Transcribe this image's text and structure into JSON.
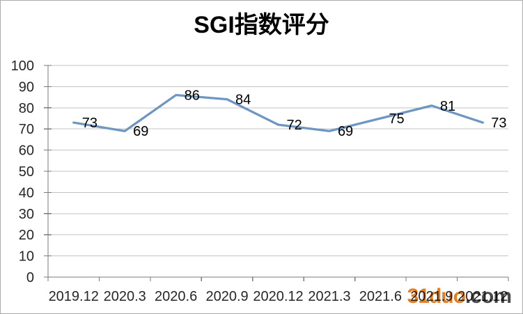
{
  "chart_data": {
    "type": "line",
    "title": "SGI指数评分",
    "categories": [
      "2019.12",
      "2020.3",
      "2020.6",
      "2020.9",
      "2020.12",
      "2021.3",
      "2021.6",
      "2021.9",
      "2021.12"
    ],
    "values": [
      73,
      69,
      86,
      84,
      72,
      69,
      75,
      81,
      73
    ],
    "xlabel": "",
    "ylabel": "",
    "ylim": [
      0,
      100
    ],
    "ytick_step": 10,
    "grid": true,
    "legend": false,
    "data_labels_position": "right",
    "line_color": "#6e96c3",
    "gridline_color": "#c3c3c3",
    "axis_color": "#7a7a7a",
    "tick_label_color": "#262626",
    "data_label_color": "#000000"
  },
  "watermark": {
    "brand": "31duo",
    "tld": ".com",
    "brand_color": "#e87711",
    "tld_color": "#3e3e3e"
  }
}
